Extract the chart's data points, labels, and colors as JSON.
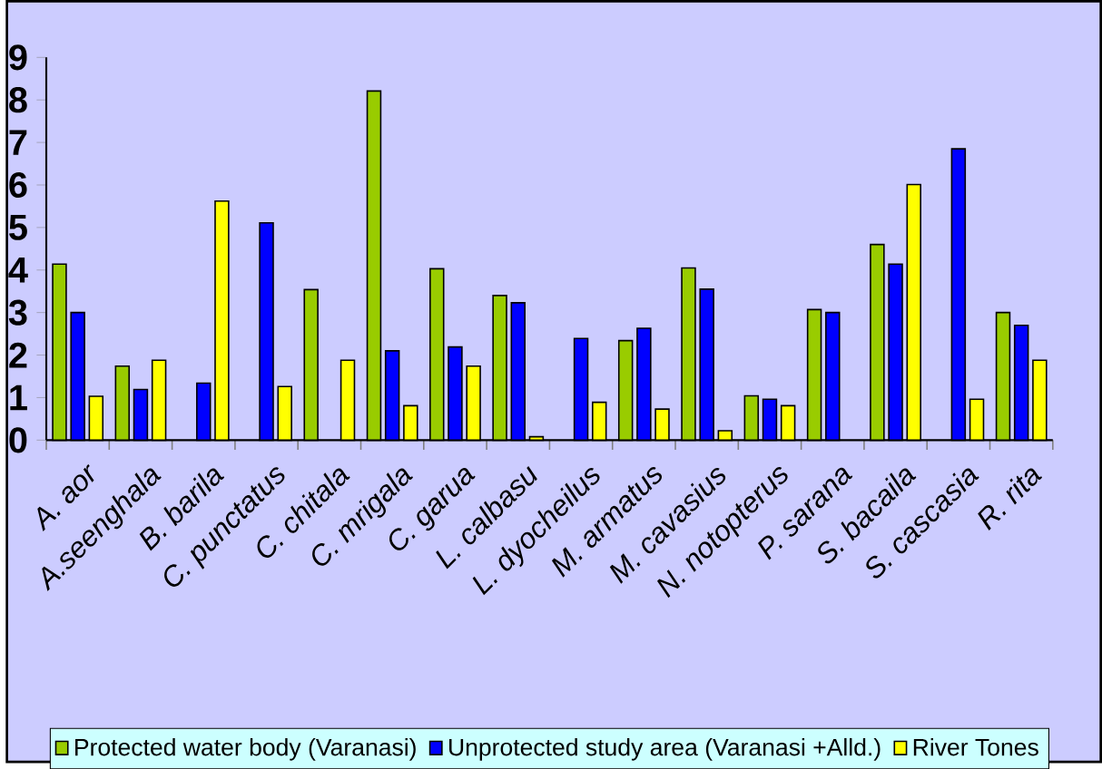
{
  "chart_data": {
    "type": "bar",
    "categories": [
      "A. aor",
      "A.seenghala",
      "B. barila",
      "C. punctatus",
      "C. chitala",
      "C. mrigala",
      "C. garua",
      "L. calbasu",
      "L. dyocheilus",
      "M. armatus",
      "M. cavasius",
      "N. notopterus",
      "P. sarana",
      "S. bacaila",
      "S. cascasia",
      "R. rita"
    ],
    "series": [
      {
        "name": "Protected water body (Varanasi)",
        "color": "#99cc00",
        "values": [
          4.14,
          1.74,
          null,
          null,
          3.54,
          8.21,
          4.03,
          3.4,
          null,
          2.34,
          4.05,
          1.04,
          3.07,
          4.6,
          null,
          3.0
        ]
      },
      {
        "name": "Unprotected study area (Varanasi +Alld.)",
        "color": "#0000ff",
        "values": [
          3.0,
          1.19,
          1.34,
          5.11,
          null,
          2.1,
          2.19,
          3.23,
          2.39,
          2.63,
          3.55,
          0.96,
          3.0,
          4.14,
          6.85,
          2.7
        ]
      },
      {
        "name": "River Tones",
        "color": "#ffff00",
        "values": [
          1.03,
          1.88,
          5.62,
          1.26,
          1.88,
          0.81,
          1.74,
          0.08,
          0.89,
          0.73,
          0.22,
          0.81,
          null,
          6.01,
          0.96,
          1.88
        ]
      }
    ],
    "ylim": [
      0,
      9
    ],
    "yticks": [
      0,
      1,
      2,
      3,
      4,
      5,
      6,
      7,
      8,
      9
    ],
    "grid": false,
    "legend": "bottom"
  }
}
